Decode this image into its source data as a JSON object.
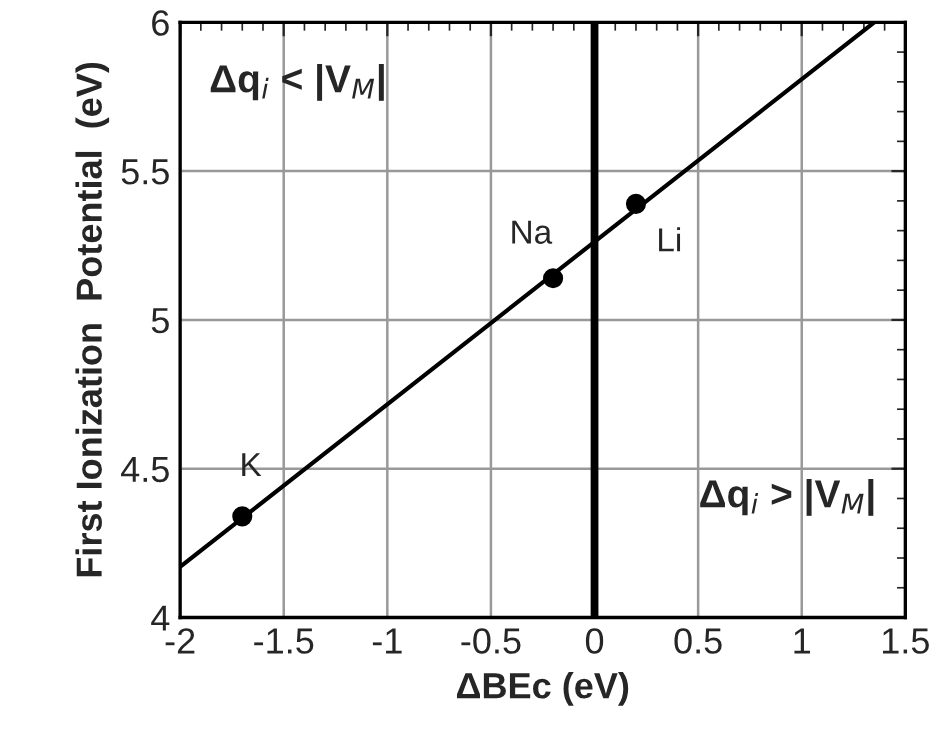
{
  "chart_data": {
    "type": "scatter",
    "xlabel": "ΔBEc (eV)",
    "ylabel": "First Ionization  Potential  (eV)",
    "xlim": [
      -2,
      1.5
    ],
    "xticks": [
      -2,
      -1.5,
      -1,
      -0.5,
      0,
      0.5,
      1,
      1.5
    ],
    "ylim": [
      4,
      6
    ],
    "yticks": [
      4,
      4.5,
      5,
      5.5,
      6
    ],
    "grid": true,
    "series": [
      {
        "color": "#000000",
        "marker": "circle",
        "x": [
          -1.7,
          -0.2,
          0.2
        ],
        "values": [
          4.34,
          5.14,
          5.39
        ]
      },
      {
        "type": "line",
        "color": "#000000",
        "marker": "none",
        "line_style": "solid",
        "x": [
          -2,
          1.35
        ],
        "values": [
          4.17,
          6.0
        ]
      }
    ],
    "ref_lines": [
      {
        "axis": "x",
        "value": 0,
        "color": "#000000",
        "line_style": "solid"
      }
    ],
    "annotations": [
      {
        "text": "K",
        "x": -1.7,
        "y": 4.34
      },
      {
        "text": "Na",
        "x": -0.2,
        "y": 5.14
      },
      {
        "text": "Li",
        "x": 0.2,
        "y": 5.39
      },
      "Δq$_{i}$ < |V$_{M}$|",
      "Δq$_{i}$ > |V$_{M}$|"
    ]
  }
}
